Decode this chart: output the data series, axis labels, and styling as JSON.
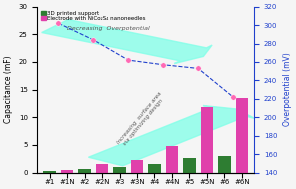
{
  "categories": [
    "#1",
    "#1N",
    "#2",
    "#2N",
    "#3",
    "#3N",
    "#4",
    "#4N",
    "#5",
    "#5N",
    "#6",
    "#6N"
  ],
  "green_bars": [
    0.25,
    0,
    0.7,
    0,
    1.0,
    0,
    1.5,
    0,
    2.7,
    0,
    3.0,
    0
  ],
  "pink_bars": [
    0,
    0.5,
    0,
    1.5,
    0,
    2.2,
    0,
    4.8,
    0,
    11.8,
    0,
    13.5
  ],
  "dot_x": [
    0.5,
    2.5,
    4.5,
    6.5,
    8.5,
    10.5
  ],
  "dot_y": [
    302,
    284,
    262,
    257,
    253,
    222
  ],
  "ylim_left": [
    0,
    30
  ],
  "ylim_right": [
    140,
    320
  ],
  "yticks_left": [
    0,
    5,
    10,
    15,
    20,
    25,
    30
  ],
  "yticks_right": [
    140,
    160,
    180,
    200,
    220,
    240,
    260,
    280,
    300,
    320
  ],
  "ylabel_left": "Capacitance (mF)",
  "ylabel_right": "Overpotential (mV)",
  "legend_green": "3D printed support",
  "legend_pink": "Electrode with NiCo₂S₄ nanoneedles",
  "bar_green": "#2e7d32",
  "bar_pink": "#e040ab",
  "line_color": "#2040cc",
  "dot_color": "#ff69b4",
  "arrow_color": "#80ffe8",
  "arrow_alpha": 0.75,
  "bg_color": "#f5f5f5"
}
